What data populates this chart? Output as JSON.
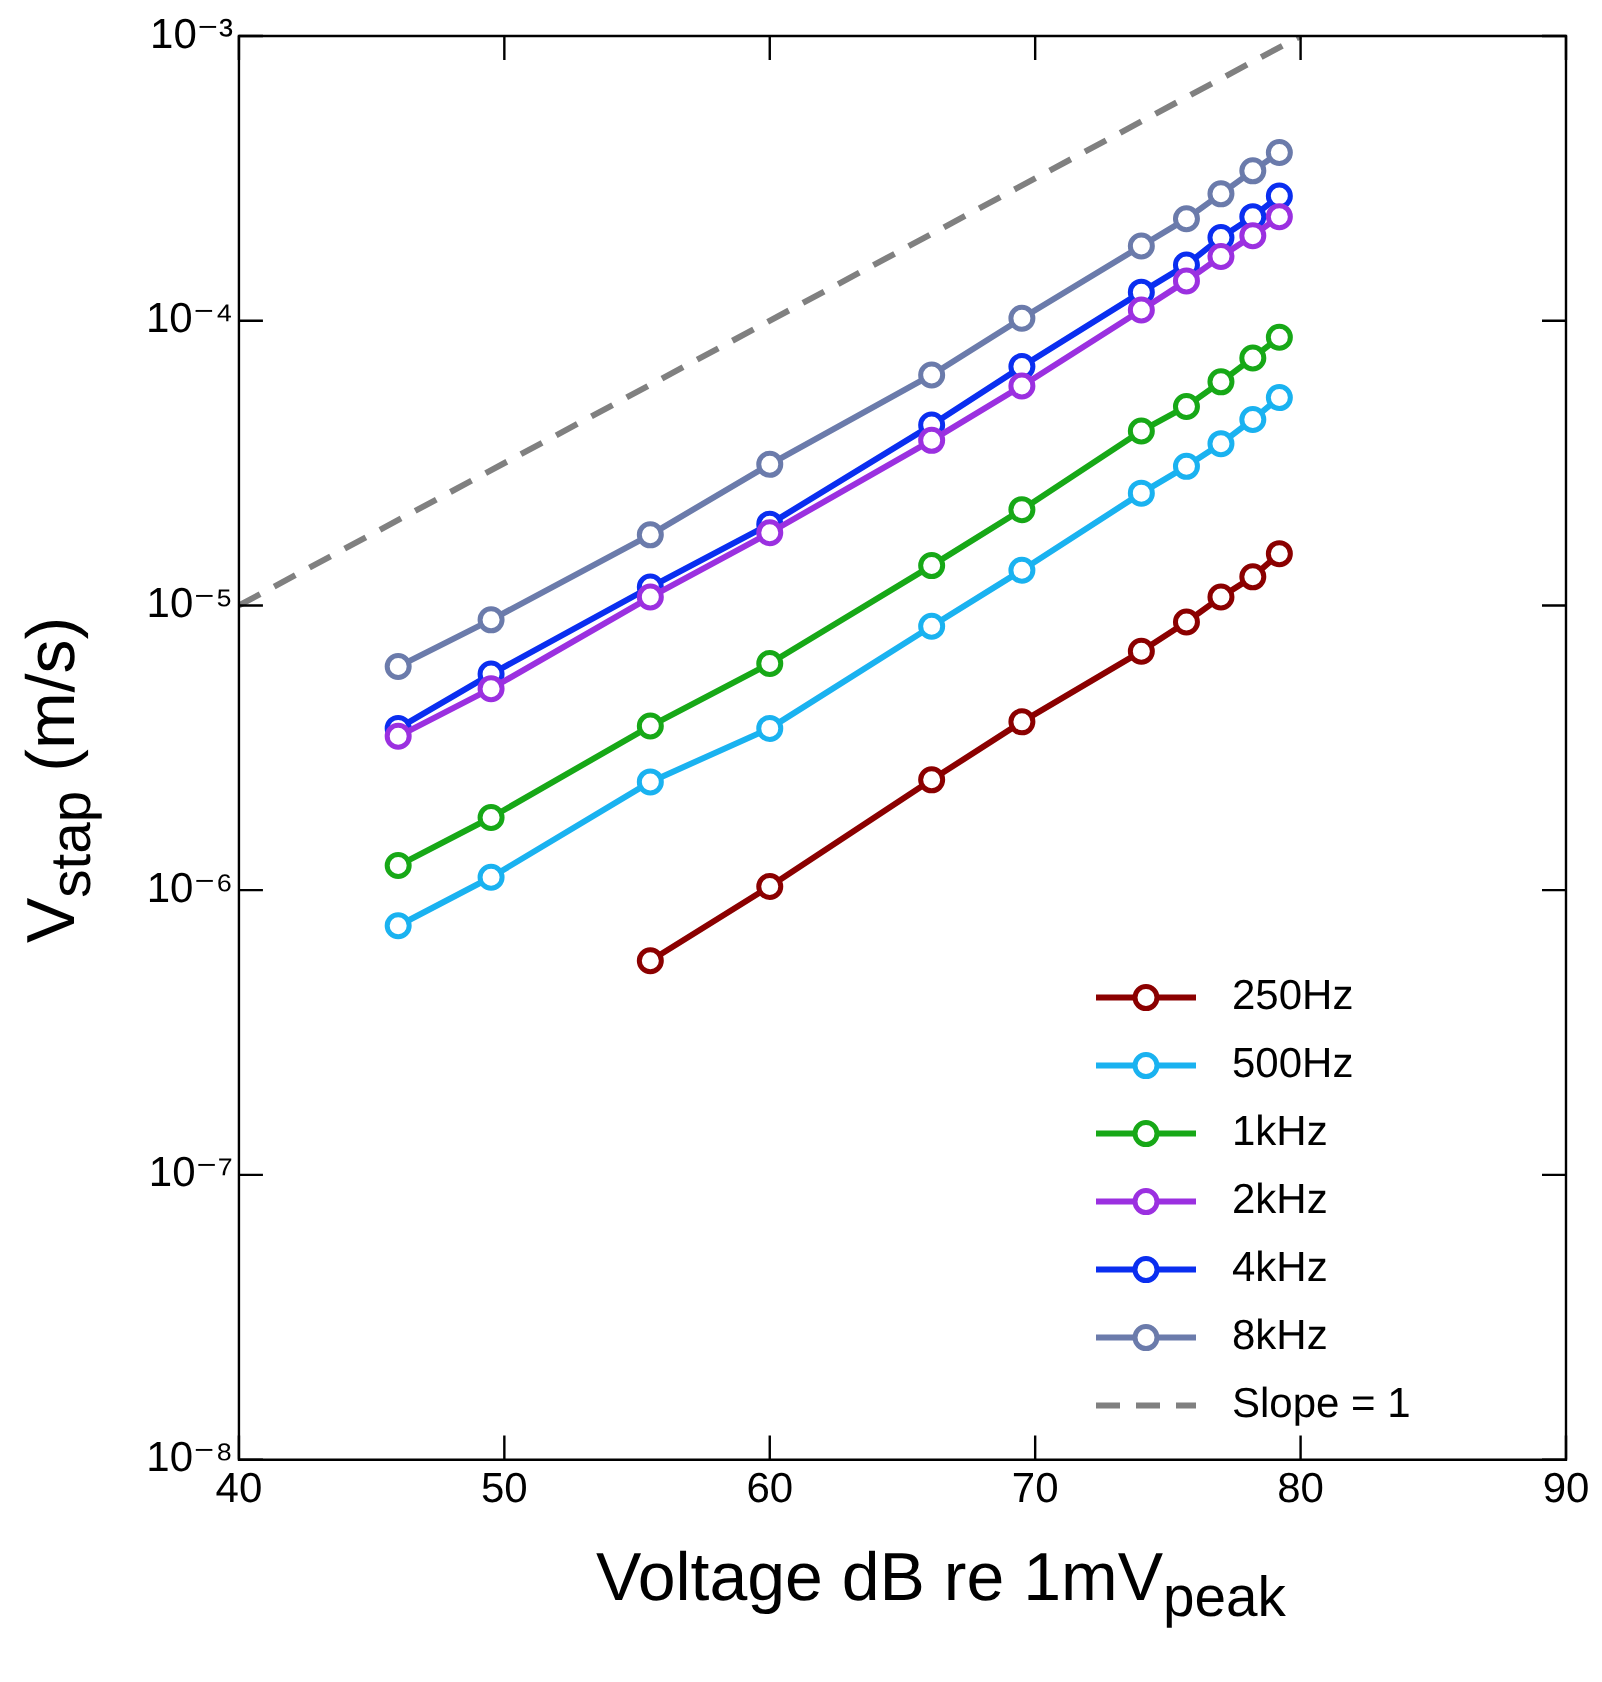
{
  "chart_data": {
    "type": "line",
    "xlabel": "Voltage dB re 1mV$_{peak}$",
    "ylabel": "V$_{stap}$ (m/s)",
    "x": [
      46,
      49.5,
      55.5,
      60,
      66.1,
      69.5,
      74,
      75.7,
      77,
      78.2,
      79.2
    ],
    "series": [
      {
        "name": "250Hz",
        "color": "#8b0000",
        "values": [
          null,
          null,
          5.65e-07,
          1.03e-06,
          2.44e-06,
          3.9e-06,
          6.9e-06,
          8.75e-06,
          1.07e-05,
          1.26e-05,
          1.52e-05
        ]
      },
      {
        "name": "500Hz",
        "color": "#1ab2f0",
        "values": [
          7.5e-07,
          1.11e-06,
          2.4e-06,
          3.7e-06,
          8.45e-06,
          1.33e-05,
          2.48e-05,
          3.08e-05,
          3.7e-05,
          4.5e-05,
          5.37e-05
        ]
      },
      {
        "name": "1kHz",
        "color": "#17a817",
        "values": [
          1.22e-06,
          1.8e-06,
          3.77e-06,
          6.25e-06,
          1.38e-05,
          2.17e-05,
          4.1e-05,
          5e-05,
          6.1e-05,
          7.4e-05,
          8.75e-05
        ]
      },
      {
        "name": "2kHz",
        "color": "#9b30e0",
        "values": [
          3.47e-06,
          5.1e-06,
          1.07e-05,
          1.8e-05,
          3.8e-05,
          5.9e-05,
          0.000109,
          0.000138,
          0.000168,
          0.000199,
          0.000232
        ]
      },
      {
        "name": "4kHz",
        "color": "#0a2ef0",
        "values": [
          3.7e-06,
          5.74e-06,
          1.16e-05,
          1.93e-05,
          4.3e-05,
          6.9e-05,
          0.000126,
          0.000157,
          0.000196,
          0.000232,
          0.000274
        ]
      },
      {
        "name": "8kHz",
        "color": "#6b7bab",
        "values": [
          6.1e-06,
          8.9e-06,
          1.77e-05,
          3.13e-05,
          6.45e-05,
          0.000102,
          0.000183,
          0.000228,
          0.000279,
          0.000336,
          0.00039
        ]
      },
      {
        "name": "Slope = 1",
        "color": "#808080",
        "x": [
          40,
          80
        ],
        "values": [
          1e-05,
          0.001
        ],
        "line_style": "dashed",
        "marker": "none"
      }
    ],
    "xlim": [
      40,
      90
    ],
    "xticks": [
      40,
      50,
      60,
      70,
      80,
      90
    ],
    "ylim": [
      1e-08,
      0.001
    ],
    "log": "y",
    "yticks": [
      {
        "value": 1e-08,
        "label": "10⁻⁸"
      },
      {
        "value": 1e-07,
        "label": "10⁻⁷"
      },
      {
        "value": 1e-06,
        "label": "10⁻⁶"
      },
      {
        "value": 1e-05,
        "label": "10⁻⁵"
      },
      {
        "value": 0.0001,
        "label": "10⁻⁴"
      },
      {
        "value": 0.001,
        "label": "10⁻³"
      }
    ],
    "marker": "circle",
    "line_style": "solid",
    "grid": false,
    "legend": "bottom right"
  }
}
